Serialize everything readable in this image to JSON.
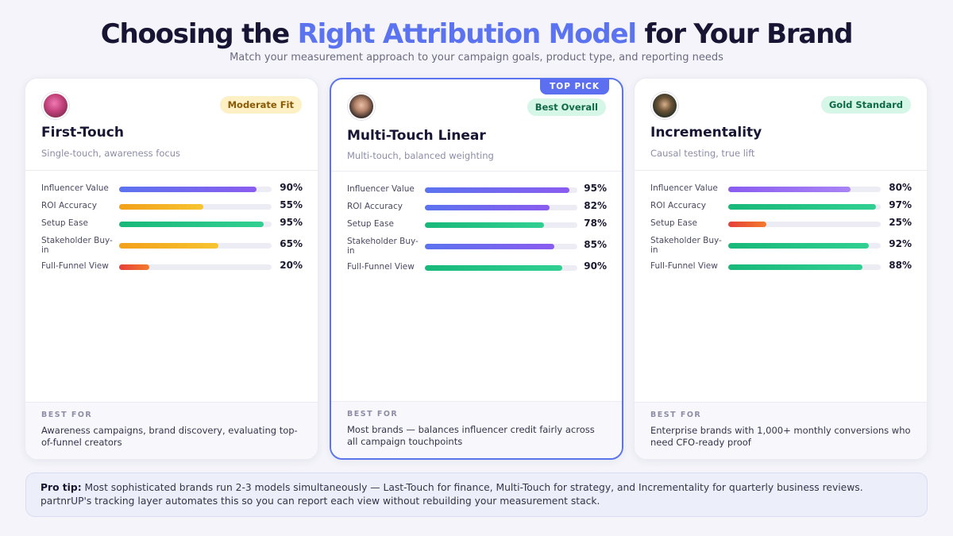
{
  "header": {
    "title_pre": "Choosing the ",
    "title_highlight": "Right Attribution Model",
    "title_post": " for Your Brand",
    "subtitle": "Match your measurement approach to your campaign goals, product type, and reporting needs"
  },
  "colors": {
    "accent": "#5b73ef",
    "green": "#1fbf82",
    "amber": "#f2ac1c",
    "red": "#ea4d3a",
    "purple": "#8a5cf0"
  },
  "cards": [
    {
      "name": "First-Touch",
      "description": "Single-touch, awareness focus",
      "badge": "Moderate Fit",
      "badge_bg": "#fdf0c4",
      "badge_color": "#8a5a06",
      "metrics": [
        {
          "label": "Influencer Value",
          "value": "90%",
          "fill": 0.9,
          "gradient": "linear-gradient(90deg,#5b73ef,#8a5cf0)"
        },
        {
          "label": "ROI Accuracy",
          "value": "55%",
          "fill": 0.55,
          "gradient": "linear-gradient(90deg,#f2a01a,#f7c431)"
        },
        {
          "label": "Setup Ease",
          "value": "95%",
          "fill": 0.95,
          "gradient": "linear-gradient(90deg,#18b87a,#32cf92)"
        },
        {
          "label": "Stakeholder Buy-in",
          "value": "65%",
          "fill": 0.65,
          "gradient": "linear-gradient(90deg,#f2a01a,#f7c431)"
        },
        {
          "label": "Full-Funnel View",
          "value": "20%",
          "fill": 0.2,
          "gradient": "linear-gradient(90deg,#e63f3a,#f37b2c)"
        }
      ],
      "best_for_label": "BEST FOR",
      "best_for": "Awareness campaigns, brand discovery, evaluating top-of-funnel creators"
    },
    {
      "name": "Multi-Touch Linear",
      "description": "Multi-touch, balanced weighting",
      "badge": "Best Overall",
      "badge_bg": "#d6f6e7",
      "badge_color": "#0f6b45",
      "top_pick": "TOP PICK",
      "metrics": [
        {
          "label": "Influencer Value",
          "value": "95%",
          "fill": 0.95,
          "gradient": "linear-gradient(90deg,#5b73ef,#8a5cf0)"
        },
        {
          "label": "ROI Accuracy",
          "value": "82%",
          "fill": 0.82,
          "gradient": "linear-gradient(90deg,#5b73ef,#8a5cf0)"
        },
        {
          "label": "Setup Ease",
          "value": "78%",
          "fill": 0.78,
          "gradient": "linear-gradient(90deg,#18b87a,#32cf92)"
        },
        {
          "label": "Stakeholder Buy-in",
          "value": "85%",
          "fill": 0.85,
          "gradient": "linear-gradient(90deg,#5b73ef,#8a5cf0)"
        },
        {
          "label": "Full-Funnel View",
          "value": "90%",
          "fill": 0.9,
          "gradient": "linear-gradient(90deg,#18b87a,#32cf92)"
        }
      ],
      "best_for_label": "BEST FOR",
      "best_for": "Most brands — balances influencer credit fairly across all campaign touchpoints"
    },
    {
      "name": "Incrementality",
      "description": "Causal testing, true lift",
      "badge": "Gold Standard",
      "badge_bg": "#d6f6e7",
      "badge_color": "#0f6b45",
      "metrics": [
        {
          "label": "Influencer Value",
          "value": "80%",
          "fill": 0.8,
          "gradient": "linear-gradient(90deg,#8a5cf0,#a884f5)"
        },
        {
          "label": "ROI Accuracy",
          "value": "97%",
          "fill": 0.97,
          "gradient": "linear-gradient(90deg,#18b87a,#32cf92)"
        },
        {
          "label": "Setup Ease",
          "value": "25%",
          "fill": 0.25,
          "gradient": "linear-gradient(90deg,#e63f3a,#f37b2c)"
        },
        {
          "label": "Stakeholder Buy-in",
          "value": "92%",
          "fill": 0.92,
          "gradient": "linear-gradient(90deg,#18b87a,#32cf92)"
        },
        {
          "label": "Full-Funnel View",
          "value": "88%",
          "fill": 0.88,
          "gradient": "linear-gradient(90deg,#18b87a,#32cf92)"
        }
      ],
      "best_for_label": "BEST FOR",
      "best_for": "Enterprise brands with 1,000+ monthly conversions who need CFO-ready proof"
    }
  ],
  "tip": {
    "label": "Pro tip:",
    "text": " Most sophisticated brands run 2-3 models simultaneously — Last-Touch for finance, Multi-Touch for strategy, and Incrementality for quarterly business reviews. partnrUP's tracking layer automates this so you can report each view without rebuilding your measurement stack."
  }
}
